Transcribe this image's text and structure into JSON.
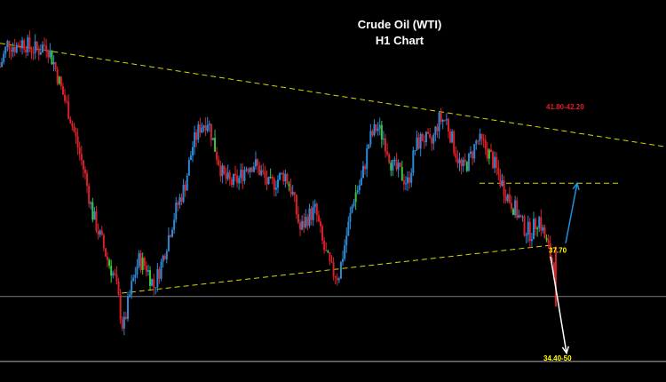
{
  "title": [
    "Crude Oil (WTI)",
    "H1 Chart"
  ],
  "chart_data": {
    "type": "line",
    "title": "Crude Oil (WTI) H1 Chart",
    "style": "candlestick",
    "xlabel": "",
    "ylabel": "",
    "ylim": [
      34.0,
      44.4
    ],
    "grid": false,
    "bars": 460,
    "series": [
      {
        "values": [
          43.2,
          43.9,
          43.8,
          43.95,
          43.75,
          43.7,
          43.9,
          43.3,
          42.5,
          41.8,
          40.9,
          40.0,
          38.8,
          38.1,
          37.4,
          36.8,
          35.3,
          36.5,
          37.4,
          37.2,
          36.6,
          37.3,
          38.2,
          39.0,
          39.6,
          40.8,
          41.4,
          41.6,
          40.7,
          39.9,
          39.7,
          39.8,
          40.2,
          40.3,
          40.0,
          39.6,
          39.8,
          40.0,
          39.4,
          38.3,
          38.7,
          38.9,
          37.8,
          37.1,
          36.9,
          38.1,
          39.3,
          39.8,
          41.0,
          41.4,
          41.0,
          40.2,
          40.0,
          39.7,
          40.8,
          41.1,
          40.8,
          41.6,
          41.6,
          40.8,
          40.1,
          40.4,
          41.0,
          40.8,
          40.4,
          39.8,
          39.3,
          38.9,
          38.4,
          38.2,
          38.7,
          37.9,
          37.2
        ]
      }
    ],
    "annotations": [
      {
        "text": "41.80-42.20",
        "color": "#e31b23",
        "price": 42.0
      },
      {
        "text": "37.70",
        "color": "#ffff00",
        "price": 37.7
      },
      {
        "text": "34.40-50",
        "color": "#ffff00",
        "price": 34.45
      }
    ],
    "horizontal_lines": [
      {
        "price": 39.7,
        "style": "dashed",
        "color": "#d8d800"
      },
      {
        "price": 36.3,
        "style": "solid",
        "color": "#7a7a7a"
      },
      {
        "price": 34.35,
        "style": "solid",
        "color": "#b0b0b0"
      }
    ],
    "trendlines": [
      {
        "name": "upper",
        "from": {
          "bar": 0,
          "price": 43.9
        },
        "to": {
          "bar": 460,
          "price": 41.0
        },
        "color": "#d8d800"
      },
      {
        "name": "lower",
        "from": {
          "bar": 90,
          "price": 36.4
        },
        "to": {
          "bar": 410,
          "price": 37.85
        },
        "color": "#d8d800"
      }
    ],
    "arrows": [
      {
        "name": "bullish",
        "direction": "up",
        "from_price": 37.9,
        "to_price": 39.7,
        "color": "#1e90d8"
      },
      {
        "name": "bearish",
        "direction": "down",
        "from_price": 37.5,
        "to_price": 34.6,
        "color": "#ffffff"
      }
    ],
    "candle_colors": {
      "up": "#2a8ad8",
      "down": "#d8222a",
      "accent": "#3cc83c"
    }
  }
}
